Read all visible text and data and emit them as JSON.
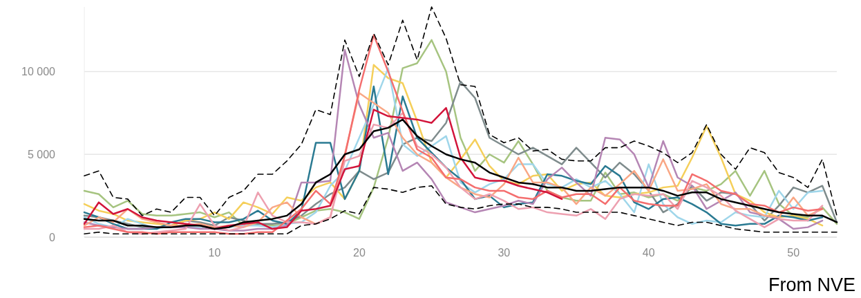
{
  "chart_data": {
    "type": "line",
    "xlim": [
      1,
      53
    ],
    "xticks": [
      10,
      20,
      30,
      40,
      50
    ],
    "ylim": [
      0,
      13900
    ],
    "yticks": [
      {
        "value": 0,
        "label": "0"
      },
      {
        "value": 5000,
        "label": "5 000"
      },
      {
        "value": 10000,
        "label": "10 000"
      }
    ],
    "grid": "y",
    "marker": "none",
    "line_style": "solid",
    "annotations": [
      "From NVE"
    ],
    "x": [
      1,
      2,
      3,
      4,
      5,
      6,
      7,
      8,
      9,
      10,
      11,
      12,
      13,
      14,
      15,
      16,
      17,
      18,
      19,
      20,
      21,
      22,
      23,
      24,
      25,
      26,
      27,
      28,
      29,
      30,
      31,
      32,
      33,
      34,
      35,
      36,
      37,
      38,
      39,
      40,
      41,
      42,
      43,
      44,
      45,
      46,
      47,
      48,
      49,
      50,
      51,
      52,
      53
    ],
    "series": [
      {
        "color": "#a6c480",
        "values": [
          2800,
          2600,
          1800,
          2200,
          1400,
          1300,
          1300,
          1400,
          1500,
          1200,
          1500,
          700,
          800,
          700,
          800,
          1200,
          1600,
          1700,
          1500,
          1100,
          3000,
          6000,
          10200,
          10500,
          11900,
          10000,
          6000,
          4000,
          5000,
          4500,
          5800,
          4400,
          2800,
          2400,
          2200,
          2200,
          3900,
          2600,
          2700,
          2400,
          2600,
          2200,
          3000,
          2800,
          3200,
          4000,
          2500,
          4000,
          2000,
          1300,
          1200,
          1800,
          800
        ]
      },
      {
        "color": "#7f8c8d",
        "values": [
          1300,
          1200,
          1000,
          800,
          600,
          600,
          700,
          1000,
          900,
          700,
          1200,
          1000,
          800,
          800,
          900,
          1300,
          2000,
          2600,
          3000,
          4000,
          3500,
          3900,
          5600,
          6000,
          5800,
          6900,
          9400,
          8400,
          6000,
          5500,
          5000,
          5400,
          4900,
          4400,
          5400,
          4500,
          3600,
          4500,
          3800,
          2800,
          1500,
          2000,
          3100,
          2200,
          2700,
          2600,
          2000,
          1000,
          1900,
          3000,
          2700,
          3100,
          900
        ]
      },
      {
        "color": "#f5cf5a",
        "values": [
          2000,
          1600,
          1400,
          1000,
          900,
          800,
          700,
          1000,
          1100,
          1500,
          1100,
          2100,
          1800,
          1400,
          2400,
          2200,
          3000,
          3300,
          2300,
          4000,
          10400,
          9600,
          9300,
          7000,
          4500,
          3600,
          4700,
          5900,
          4300,
          3400,
          3200,
          3700,
          3800,
          2800,
          3200,
          3300,
          2500,
          2400,
          2600,
          2700,
          3000,
          3100,
          4800,
          6700,
          4800,
          2600,
          2200,
          1500,
          1200,
          1300,
          1100,
          700,
          null
        ]
      },
      {
        "color": "#9fd6ea",
        "values": [
          1200,
          800,
          600,
          1100,
          800,
          500,
          700,
          600,
          600,
          500,
          600,
          700,
          700,
          600,
          800,
          900,
          1500,
          3100,
          4000,
          6000,
          8000,
          10200,
          5600,
          4900,
          5500,
          6100,
          3300,
          2700,
          3200,
          3500,
          4400,
          4400,
          3200,
          3000,
          3500,
          3000,
          3400,
          2600,
          1500,
          4400,
          2000,
          1200,
          800,
          1000,
          900,
          1500,
          1300,
          1200,
          2800,
          1700,
          2700,
          2800,
          null
        ]
      },
      {
        "color": "#2a7a92",
        "values": [
          1500,
          1200,
          800,
          500,
          500,
          500,
          900,
          1100,
          1100,
          900,
          900,
          1100,
          1600,
          1000,
          800,
          1600,
          5700,
          5700,
          2300,
          4000,
          9100,
          3800,
          8500,
          6000,
          5100,
          4200,
          3500,
          2300,
          2500,
          1800,
          2000,
          2100,
          3800,
          3700,
          3400,
          3200,
          4300,
          3700,
          2100,
          1700,
          2300,
          2400,
          2000,
          1500,
          800,
          700,
          800,
          800,
          1300,
          1200,
          1000,
          1200,
          null
        ]
      },
      {
        "color": "#b586b4",
        "values": [
          900,
          700,
          600,
          500,
          500,
          600,
          600,
          600,
          500,
          500,
          400,
          400,
          500,
          500,
          700,
          3300,
          3300,
          3400,
          11300,
          8000,
          6000,
          6300,
          4000,
          4500,
          3500,
          2100,
          1800,
          1500,
          1700,
          1900,
          2200,
          2000,
          3500,
          4200,
          3300,
          2500,
          6000,
          5900,
          5000,
          3000,
          5800,
          3600,
          3100,
          1700,
          2200,
          2700,
          1500,
          1300,
          1100,
          500,
          600,
          1000,
          null
        ]
      },
      {
        "color": "#f9a785",
        "values": [
          700,
          1200,
          900,
          1700,
          1100,
          900,
          700,
          700,
          800,
          600,
          700,
          600,
          900,
          1800,
          2100,
          1200,
          800,
          1200,
          5000,
          8700,
          8100,
          7500,
          6000,
          5000,
          4500,
          3600,
          3000,
          2600,
          2400,
          3200,
          4800,
          3300,
          3300,
          3000,
          2000,
          3000,
          2500,
          3200,
          4000,
          2800,
          4700,
          2800,
          2900,
          3200,
          2000,
          1700,
          1700,
          1300,
          1200,
          2400,
          1300,
          1700,
          null
        ]
      },
      {
        "color": "#eda0b0",
        "values": [
          500,
          500,
          700,
          300,
          200,
          300,
          400,
          500,
          2000,
          700,
          400,
          600,
          2700,
          1300,
          900,
          900,
          800,
          1200,
          4600,
          4900,
          6800,
          6600,
          7500,
          5500,
          5000,
          4200,
          3000,
          2300,
          2600,
          2200,
          1700,
          1800,
          1500,
          1400,
          1300,
          1700,
          1100,
          2300,
          2600,
          2500,
          2600,
          1700,
          3400,
          3000,
          2500,
          1600,
          1100,
          600,
          1100,
          1000,
          1000,
          1900,
          null
        ]
      },
      {
        "color": "#f46e6e",
        "values": [
          600,
          700,
          500,
          300,
          300,
          200,
          300,
          300,
          300,
          300,
          200,
          200,
          300,
          300,
          1000,
          1700,
          2800,
          2000,
          4900,
          8900,
          12200,
          10000,
          7600,
          5300,
          4800,
          3600,
          3500,
          3000,
          2800,
          2800,
          2400,
          2300,
          2800,
          2400,
          2600,
          2600,
          2000,
          3000,
          2200,
          2000,
          1900,
          1900,
          3800,
          3400,
          2800,
          2600,
          2000,
          1900,
          1500,
          1800,
          1600,
          1700,
          null
        ]
      },
      {
        "color": "#d2143a",
        "values": [
          800,
          2100,
          1400,
          1700,
          1200,
          1000,
          900,
          800,
          700,
          500,
          700,
          800,
          900,
          500,
          600,
          1600,
          1700,
          1900,
          4100,
          4300,
          7700,
          7300,
          7200,
          7100,
          6900,
          7800,
          4800,
          3600,
          3400,
          3400,
          3100,
          2900,
          2700,
          2300,
          null,
          null,
          null,
          null,
          null,
          null,
          null,
          null,
          null,
          null,
          null,
          null,
          null,
          null,
          null,
          null,
          null,
          null,
          null
        ]
      },
      {
        "color": "#000000",
        "line_style": "dashed",
        "values": [
          3700,
          4000,
          2400,
          2300,
          1300,
          1700,
          1500,
          2400,
          2400,
          1300,
          2400,
          2800,
          3800,
          3800,
          4600,
          5600,
          7700,
          7400,
          11900,
          9700,
          12300,
          10400,
          13100,
          10700,
          13900,
          12000,
          9200,
          9100,
          6200,
          5700,
          6000,
          5200,
          5300,
          4700,
          4600,
          4600,
          5400,
          5400,
          5800,
          5500,
          5100,
          4500,
          5100,
          6800,
          5000,
          4100,
          5400,
          5100,
          3900,
          3600,
          3000,
          4700,
          1300
        ]
      },
      {
        "color": "#000000",
        "line_style": "dashed",
        "values": [
          200,
          300,
          200,
          200,
          200,
          200,
          200,
          200,
          200,
          200,
          200,
          200,
          200,
          200,
          200,
          700,
          800,
          1100,
          1600,
          1400,
          3000,
          2900,
          2700,
          3000,
          3100,
          2000,
          1800,
          1700,
          1900,
          2000,
          2000,
          1800,
          1800,
          1700,
          1500,
          1500,
          1500,
          1500,
          1300,
          1100,
          900,
          700,
          900,
          900,
          700,
          500,
          400,
          300,
          300,
          300,
          300,
          300,
          300
        ]
      },
      {
        "color": "#000000",
        "values": [
          1100,
          1000,
          1000,
          700,
          700,
          600,
          600,
          700,
          700,
          500,
          600,
          900,
          1000,
          1100,
          1300,
          2000,
          3300,
          3800,
          5000,
          5300,
          6400,
          6600,
          7100,
          6100,
          5500,
          5000,
          4700,
          4500,
          3900,
          3600,
          3300,
          3200,
          3000,
          3000,
          2800,
          2800,
          2900,
          3000,
          3000,
          3000,
          2800,
          2500,
          2700,
          2700,
          2300,
          2100,
          1900,
          1700,
          1500,
          1400,
          1300,
          1300,
          900
        ]
      }
    ]
  }
}
